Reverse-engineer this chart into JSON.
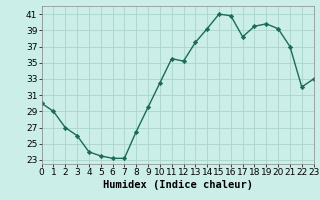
{
  "x": [
    0,
    1,
    2,
    3,
    4,
    5,
    6,
    7,
    8,
    9,
    10,
    11,
    12,
    13,
    14,
    15,
    16,
    17,
    18,
    19,
    20,
    21,
    22,
    23
  ],
  "y": [
    30,
    29,
    27,
    26,
    24,
    23.5,
    23.2,
    23.2,
    26.5,
    29.5,
    32.5,
    35.5,
    35.2,
    37.5,
    39.2,
    41,
    40.8,
    38.2,
    39.5,
    39.8,
    39.2,
    37,
    32,
    33
  ],
  "line_color": "#1a6b5a",
  "marker_color": "#1a6b5a",
  "bg_color": "#cceee8",
  "grid_color": "#aad4cc",
  "xlabel": "Humidex (Indice chaleur)",
  "xlim": [
    0,
    23
  ],
  "ylim": [
    22.5,
    42
  ],
  "yticks": [
    23,
    25,
    27,
    29,
    31,
    33,
    35,
    37,
    39,
    41
  ],
  "xticks": [
    0,
    1,
    2,
    3,
    4,
    5,
    6,
    7,
    8,
    9,
    10,
    11,
    12,
    13,
    14,
    15,
    16,
    17,
    18,
    19,
    20,
    21,
    22,
    23
  ],
  "xlabel_fontsize": 7.5,
  "tick_fontsize": 6.5
}
